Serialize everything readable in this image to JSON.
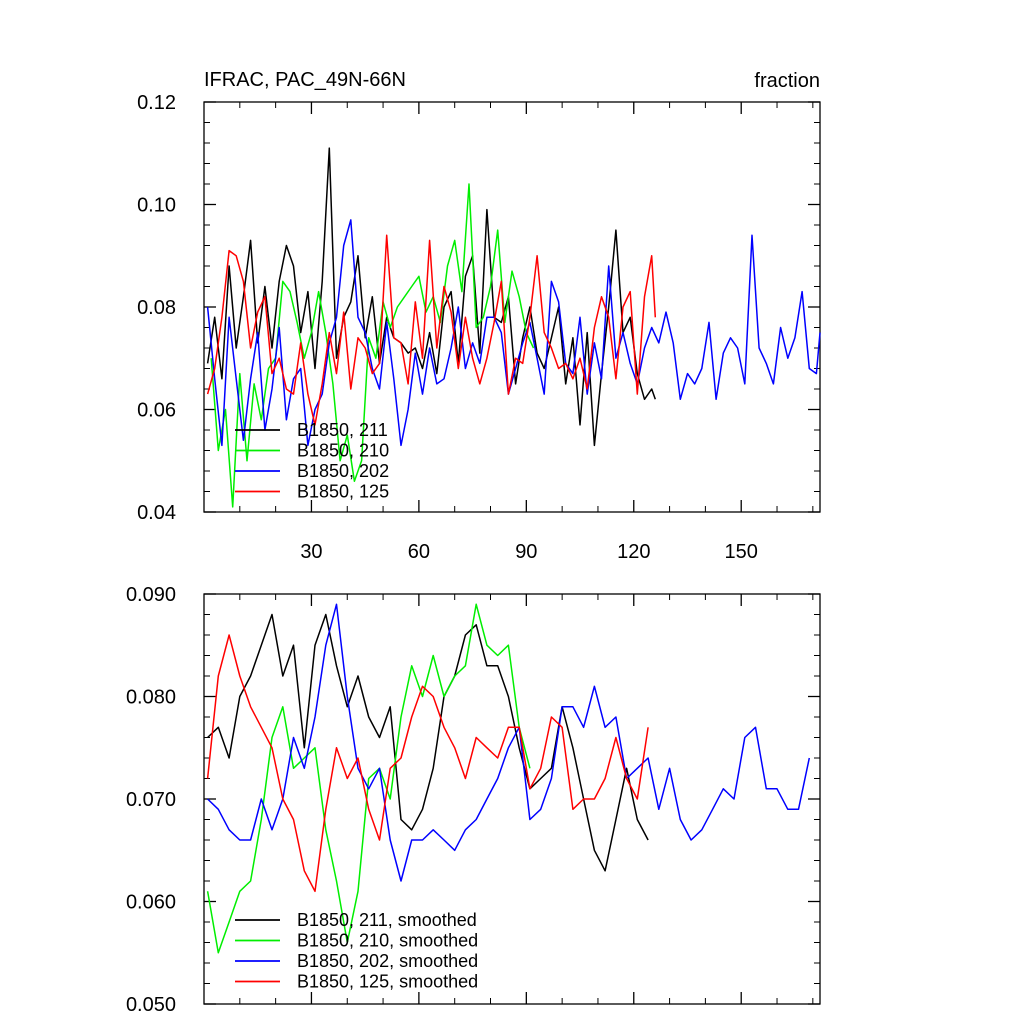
{
  "chart_data": [
    {
      "type": "line",
      "title": "IFRAC, PAC_49N-66N",
      "units": "fraction",
      "xlim": [
        0,
        172
      ],
      "ylim": [
        0.04,
        0.12
      ],
      "xticks": [
        30,
        60,
        90,
        120,
        150
      ],
      "xtick_labels": [
        "30",
        "60",
        "90",
        "120",
        "150"
      ],
      "yticks": [
        0.04,
        0.06,
        0.08,
        0.1,
        0.12
      ],
      "ytick_labels": [
        "0.04",
        "0.06",
        "0.08",
        "0.10",
        "0.12"
      ],
      "legend_location": "bottom-left",
      "series": [
        {
          "name": "B1850, 211",
          "color": "#000000",
          "x": [
            1,
            3,
            5,
            7,
            9,
            11,
            13,
            15,
            17,
            19,
            21,
            23,
            25,
            27,
            29,
            31,
            33,
            35,
            37,
            39,
            41,
            43,
            45,
            47,
            49,
            51,
            53,
            55,
            57,
            59,
            61,
            63,
            65,
            67,
            69,
            71,
            73,
            75,
            77,
            79,
            81,
            83,
            85,
            87,
            89,
            91,
            93,
            95,
            97,
            99,
            101,
            103,
            105,
            107,
            109,
            111,
            113,
            115,
            117,
            119,
            121,
            123,
            125,
            126
          ],
          "y": [
            0.069,
            0.078,
            0.066,
            0.088,
            0.072,
            0.082,
            0.093,
            0.073,
            0.084,
            0.072,
            0.085,
            0.092,
            0.088,
            0.075,
            0.083,
            0.068,
            0.085,
            0.111,
            0.07,
            0.078,
            0.081,
            0.09,
            0.074,
            0.082,
            0.069,
            0.078,
            0.074,
            0.073,
            0.071,
            0.072,
            0.068,
            0.075,
            0.067,
            0.08,
            0.083,
            0.069,
            0.086,
            0.09,
            0.071,
            0.099,
            0.078,
            0.077,
            0.082,
            0.065,
            0.074,
            0.08,
            0.071,
            0.068,
            0.074,
            0.08,
            0.065,
            0.074,
            0.057,
            0.075,
            0.053,
            0.067,
            0.08,
            0.095,
            0.075,
            0.078,
            0.067,
            0.062,
            0.064,
            0.062
          ]
        },
        {
          "name": "B1850, 210",
          "color": "#00ee00",
          "x": [
            2,
            4,
            6,
            8,
            10,
            12,
            14,
            16,
            18,
            20,
            22,
            24,
            26,
            28,
            30,
            32,
            34,
            36,
            38,
            40,
            42,
            44,
            46,
            48,
            50,
            52,
            54,
            56,
            58,
            60,
            62,
            64,
            66,
            68,
            70,
            72,
            74,
            76,
            78,
            80,
            82,
            84,
            86,
            88,
            90,
            92
          ],
          "y": [
            0.07,
            0.052,
            0.06,
            0.041,
            0.067,
            0.05,
            0.065,
            0.058,
            0.068,
            0.07,
            0.085,
            0.083,
            0.077,
            0.07,
            0.075,
            0.083,
            0.075,
            0.065,
            0.05,
            0.055,
            0.046,
            0.05,
            0.074,
            0.07,
            0.081,
            0.076,
            0.08,
            0.082,
            0.084,
            0.086,
            0.079,
            0.082,
            0.077,
            0.088,
            0.093,
            0.083,
            0.104,
            0.076,
            0.078,
            0.084,
            0.095,
            0.077,
            0.087,
            0.082,
            0.075,
            0.072
          ]
        },
        {
          "name": "B1850, 202",
          "color": "#0000ff",
          "x": [
            1,
            3,
            5,
            7,
            9,
            11,
            13,
            15,
            17,
            19,
            21,
            23,
            25,
            27,
            29,
            31,
            33,
            35,
            37,
            39,
            41,
            43,
            45,
            47,
            49,
            51,
            53,
            55,
            57,
            59,
            61,
            63,
            65,
            67,
            69,
            71,
            73,
            75,
            77,
            79,
            81,
            83,
            85,
            87,
            89,
            91,
            93,
            95,
            97,
            99,
            101,
            103,
            105,
            107,
            109,
            111,
            113,
            115,
            117,
            119,
            121,
            123,
            125,
            127,
            129,
            131,
            133,
            135,
            137,
            139,
            141,
            143,
            145,
            147,
            149,
            151,
            153,
            155,
            157,
            159,
            161,
            163,
            165,
            167,
            169,
            171,
            172
          ],
          "y": [
            0.08,
            0.066,
            0.053,
            0.078,
            0.066,
            0.054,
            0.066,
            0.075,
            0.056,
            0.064,
            0.076,
            0.058,
            0.066,
            0.068,
            0.053,
            0.06,
            0.063,
            0.073,
            0.078,
            0.092,
            0.097,
            0.078,
            0.075,
            0.068,
            0.064,
            0.077,
            0.066,
            0.053,
            0.06,
            0.071,
            0.063,
            0.072,
            0.065,
            0.066,
            0.072,
            0.08,
            0.068,
            0.073,
            0.069,
            0.078,
            0.078,
            0.075,
            0.063,
            0.068,
            0.073,
            0.077,
            0.07,
            0.063,
            0.085,
            0.081,
            0.069,
            0.067,
            0.078,
            0.063,
            0.073,
            0.066,
            0.088,
            0.07,
            0.075,
            0.069,
            0.065,
            0.072,
            0.076,
            0.073,
            0.079,
            0.073,
            0.062,
            0.067,
            0.065,
            0.068,
            0.077,
            0.062,
            0.071,
            0.074,
            0.072,
            0.065,
            0.094,
            0.072,
            0.069,
            0.065,
            0.076,
            0.07,
            0.074,
            0.083,
            0.068,
            0.067,
            0.075
          ]
        },
        {
          "name": "B1850, 125",
          "color": "#ff0000",
          "x": [
            1,
            3,
            5,
            7,
            9,
            11,
            13,
            15,
            17,
            19,
            21,
            23,
            25,
            27,
            29,
            31,
            33,
            35,
            37,
            39,
            41,
            43,
            45,
            47,
            49,
            51,
            53,
            55,
            57,
            59,
            61,
            63,
            65,
            67,
            69,
            71,
            73,
            75,
            77,
            79,
            81,
            83,
            85,
            87,
            89,
            91,
            93,
            95,
            97,
            99,
            101,
            103,
            105,
            107,
            109,
            111,
            113,
            115,
            117,
            119,
            121,
            123,
            125,
            126
          ],
          "y": [
            0.063,
            0.068,
            0.078,
            0.091,
            0.09,
            0.085,
            0.072,
            0.079,
            0.082,
            0.067,
            0.07,
            0.064,
            0.063,
            0.073,
            0.063,
            0.057,
            0.065,
            0.075,
            0.067,
            0.079,
            0.064,
            0.074,
            0.072,
            0.067,
            0.069,
            0.094,
            0.074,
            0.073,
            0.065,
            0.081,
            0.07,
            0.093,
            0.072,
            0.084,
            0.079,
            0.068,
            0.078,
            0.07,
            0.065,
            0.07,
            0.077,
            0.085,
            0.063,
            0.07,
            0.069,
            0.078,
            0.09,
            0.075,
            0.072,
            0.068,
            0.069,
            0.066,
            0.07,
            0.064,
            0.076,
            0.082,
            0.078,
            0.066,
            0.08,
            0.083,
            0.063,
            0.082,
            0.09,
            0.078
          ]
        }
      ]
    },
    {
      "type": "line",
      "title": "",
      "xlim": [
        0,
        172
      ],
      "ylim": [
        0.05,
        0.09
      ],
      "xticks": [
        30,
        60,
        90,
        120,
        150
      ],
      "yticks": [
        0.05,
        0.06,
        0.07,
        0.08,
        0.09
      ],
      "ytick_labels": [
        "0.050",
        "0.060",
        "0.070",
        "0.080",
        "0.090"
      ],
      "legend_location": "bottom-left",
      "series": [
        {
          "name": "B1850, 211, smoothed",
          "color": "#000000",
          "x": [
            1,
            4,
            7,
            10,
            13,
            16,
            19,
            22,
            25,
            28,
            31,
            34,
            37,
            40,
            43,
            46,
            49,
            52,
            55,
            58,
            61,
            64,
            67,
            70,
            73,
            76,
            79,
            82,
            85,
            88,
            91,
            94,
            97,
            100,
            103,
            106,
            109,
            112,
            115,
            118,
            121,
            124
          ],
          "y": [
            0.076,
            0.077,
            0.074,
            0.08,
            0.082,
            0.085,
            0.088,
            0.082,
            0.085,
            0.075,
            0.085,
            0.088,
            0.083,
            0.079,
            0.082,
            0.078,
            0.076,
            0.079,
            0.068,
            0.067,
            0.069,
            0.073,
            0.08,
            0.082,
            0.086,
            0.087,
            0.083,
            0.083,
            0.08,
            0.075,
            0.071,
            0.072,
            0.073,
            0.079,
            0.075,
            0.07,
            0.065,
            0.063,
            0.068,
            0.073,
            0.068,
            0.066
          ]
        },
        {
          "name": "B1850, 210, smoothed",
          "color": "#00ee00",
          "x": [
            1,
            4,
            7,
            10,
            13,
            16,
            19,
            22,
            25,
            28,
            31,
            34,
            37,
            40,
            43,
            46,
            49,
            52,
            55,
            58,
            61,
            64,
            67,
            70,
            73,
            76,
            79,
            82,
            85,
            88,
            91
          ],
          "y": [
            0.061,
            0.055,
            0.058,
            0.061,
            0.062,
            0.068,
            0.076,
            0.079,
            0.073,
            0.074,
            0.075,
            0.067,
            0.062,
            0.056,
            0.061,
            0.072,
            0.073,
            0.07,
            0.078,
            0.083,
            0.08,
            0.084,
            0.08,
            0.082,
            0.083,
            0.089,
            0.085,
            0.084,
            0.085,
            0.077,
            0.073
          ]
        },
        {
          "name": "B1850, 202, smoothed",
          "color": "#0000ff",
          "x": [
            1,
            4,
            7,
            10,
            13,
            16,
            19,
            22,
            25,
            28,
            31,
            34,
            37,
            40,
            43,
            46,
            49,
            52,
            55,
            58,
            61,
            64,
            67,
            70,
            73,
            76,
            79,
            82,
            85,
            88,
            91,
            94,
            97,
            100,
            103,
            106,
            109,
            112,
            115,
            118,
            121,
            124,
            127,
            130,
            133,
            136,
            139,
            142,
            145,
            148,
            151,
            154,
            157,
            160,
            163,
            166,
            169
          ],
          "y": [
            0.07,
            0.069,
            0.067,
            0.066,
            0.066,
            0.07,
            0.067,
            0.07,
            0.076,
            0.073,
            0.078,
            0.085,
            0.089,
            0.08,
            0.073,
            0.071,
            0.073,
            0.066,
            0.062,
            0.066,
            0.066,
            0.067,
            0.066,
            0.065,
            0.067,
            0.068,
            0.07,
            0.072,
            0.075,
            0.077,
            0.068,
            0.069,
            0.072,
            0.079,
            0.079,
            0.077,
            0.081,
            0.077,
            0.078,
            0.072,
            0.073,
            0.074,
            0.069,
            0.073,
            0.068,
            0.066,
            0.067,
            0.069,
            0.071,
            0.07,
            0.076,
            0.077,
            0.071,
            0.071,
            0.069,
            0.069,
            0.074
          ]
        },
        {
          "name": "B1850, 125, smoothed",
          "color": "#ff0000",
          "x": [
            1,
            4,
            7,
            10,
            13,
            16,
            19,
            22,
            25,
            28,
            31,
            34,
            37,
            40,
            43,
            46,
            49,
            52,
            55,
            58,
            61,
            64,
            67,
            70,
            73,
            76,
            79,
            82,
            85,
            88,
            91,
            94,
            97,
            100,
            103,
            106,
            109,
            112,
            115,
            118,
            121,
            124
          ],
          "y": [
            0.072,
            0.082,
            0.086,
            0.082,
            0.079,
            0.077,
            0.075,
            0.07,
            0.068,
            0.063,
            0.061,
            0.069,
            0.075,
            0.072,
            0.074,
            0.069,
            0.066,
            0.073,
            0.074,
            0.078,
            0.081,
            0.08,
            0.077,
            0.075,
            0.072,
            0.076,
            0.075,
            0.074,
            0.077,
            0.077,
            0.071,
            0.073,
            0.078,
            0.077,
            0.069,
            0.07,
            0.07,
            0.072,
            0.076,
            0.072,
            0.07,
            0.077
          ]
        }
      ]
    }
  ]
}
